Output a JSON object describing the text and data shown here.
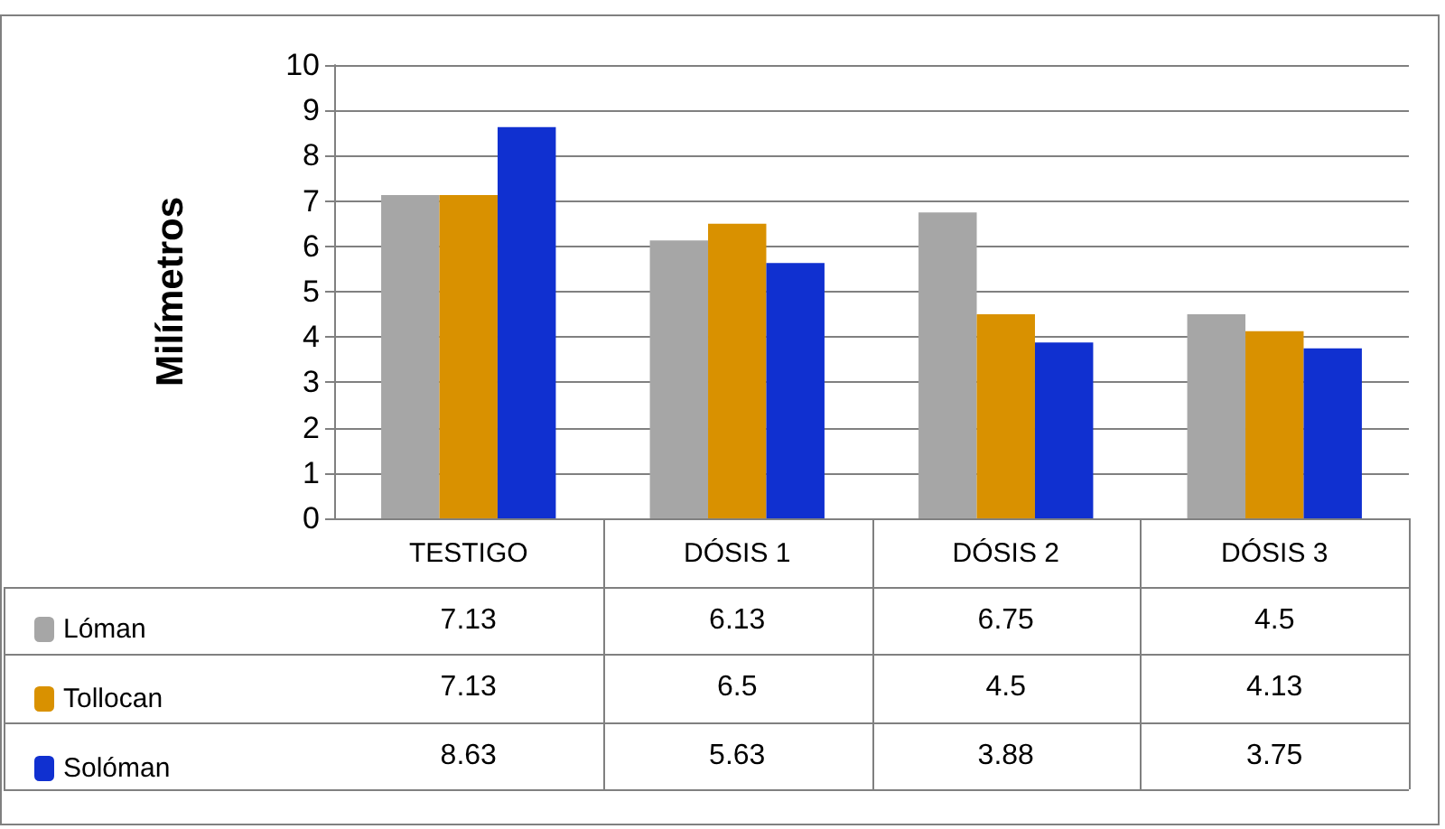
{
  "chart_data": {
    "type": "bar",
    "ylabel": "Milímetros",
    "categories": [
      "TESTIGO",
      "DÓSIS 1",
      "DÓSIS 2",
      "DÓSIS 3"
    ],
    "series": [
      {
        "name": "Lóman",
        "color": "#a6a6a6",
        "values": [
          7.13,
          6.13,
          6.75,
          4.5
        ]
      },
      {
        "name": "Tollocan",
        "color": "#d99100",
        "values": [
          7.13,
          6.5,
          4.5,
          4.13
        ]
      },
      {
        "name": "Solóman",
        "color": "#1030d0",
        "values": [
          8.63,
          5.63,
          3.88,
          3.75
        ]
      }
    ],
    "ylim": [
      0,
      10
    ],
    "yticks": [
      0,
      1,
      2,
      3,
      4,
      5,
      6,
      7,
      8,
      9,
      10
    ],
    "grid": "y",
    "legend": "bottom left",
    "data_labels": true
  }
}
